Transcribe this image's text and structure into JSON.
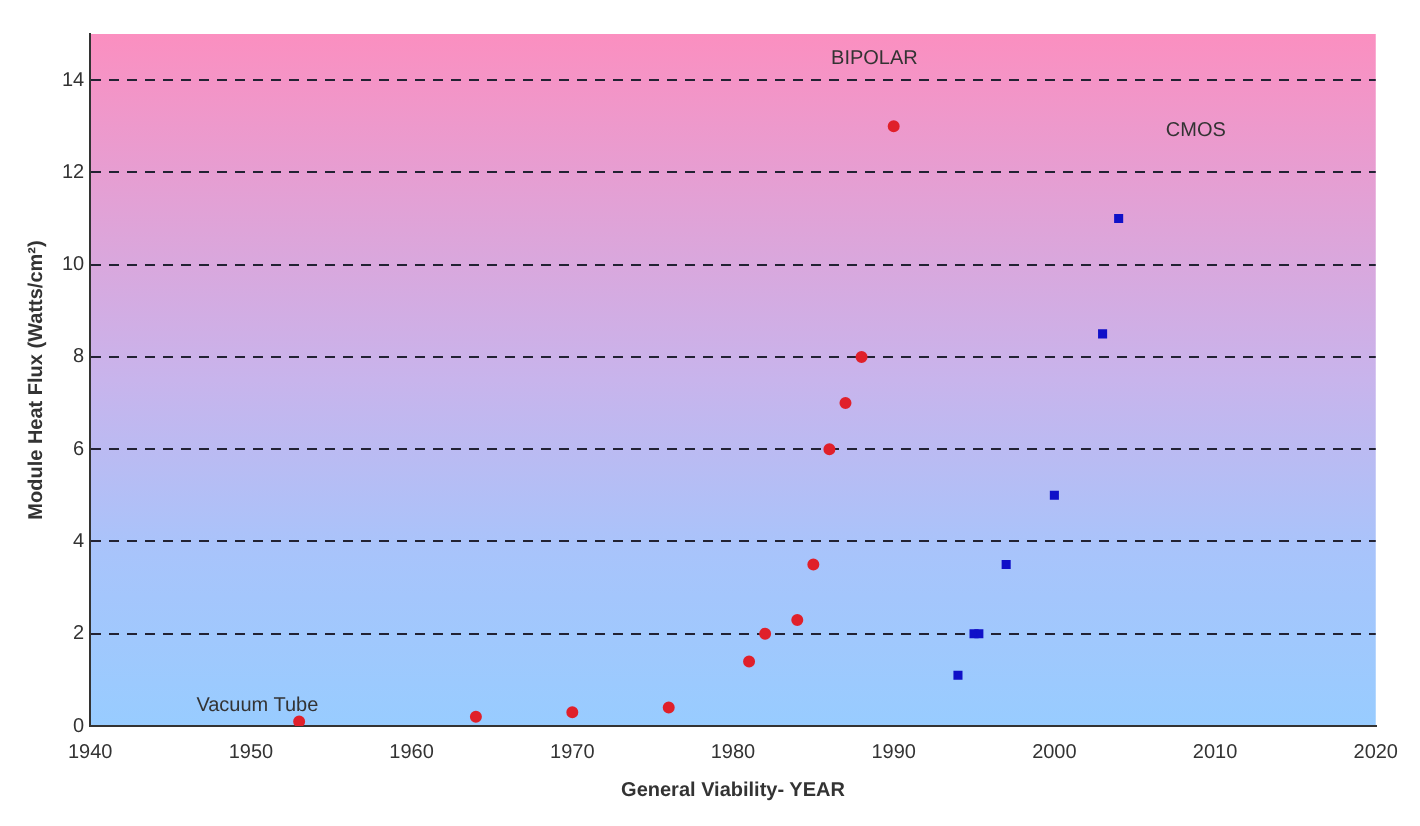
{
  "chart_data": {
    "type": "scatter",
    "xlabel": "General Viability- YEAR",
    "ylabel": "Module Heat Flux (Watts/cm²)",
    "xlim": [
      1940,
      2020
    ],
    "xticks": [
      1940,
      1950,
      1960,
      1970,
      1980,
      1990,
      2000,
      2010,
      2020
    ],
    "ylim": [
      0,
      15
    ],
    "yticks": [
      0,
      2,
      4,
      6,
      8,
      10,
      12,
      14
    ],
    "grid": "y",
    "line_style": "dashed",
    "legend": false,
    "series": [
      {
        "color": "#e0202a",
        "marker": "circle",
        "x": [
          1953,
          1964,
          1970,
          1976,
          1981,
          1982,
          1984,
          1985,
          1986,
          1987,
          1988,
          1990
        ],
        "values": [
          0.1,
          0.2,
          0.3,
          0.4,
          1.4,
          2.0,
          2.3,
          3.5,
          6.0,
          7.0,
          8.0,
          13.0
        ]
      },
      {
        "color": "#1010c8",
        "marker": "square",
        "x": [
          1994,
          1995,
          1995.3,
          1997,
          2000,
          2003,
          2004
        ],
        "values": [
          1.1,
          2.0,
          2.0,
          3.5,
          5.0,
          8.5,
          11.0
        ]
      }
    ],
    "annotations": [
      "BIPOLAR",
      "CMOS",
      "Vacuum Tube"
    ]
  }
}
